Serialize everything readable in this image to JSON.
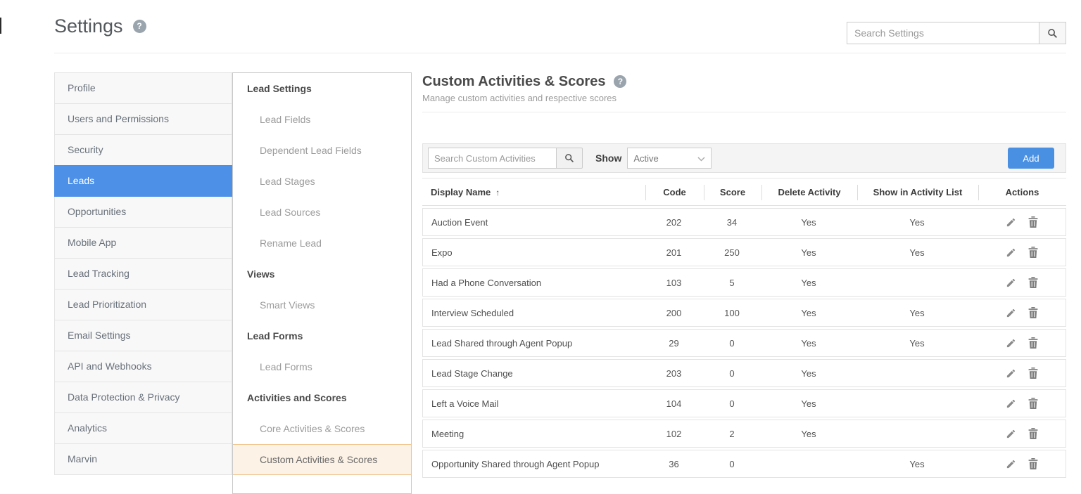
{
  "page": {
    "title": "Settings",
    "search_placeholder": "Search Settings"
  },
  "colors": {
    "accent_blue": "#4d90e8",
    "add_button_blue": "#4a90e2",
    "selected_submenu_bg": "#fcf2e6",
    "selected_submenu_border": "#f0c58f"
  },
  "icons": {
    "help": "question-mark-circle",
    "search": "magnifier",
    "dropdown": "chevron-down",
    "sort": "arrow-up",
    "edit": "pencil",
    "delete": "trash"
  },
  "sidebar": {
    "items": [
      {
        "label": "Profile",
        "selected": false
      },
      {
        "label": "Users and Permissions",
        "selected": false
      },
      {
        "label": "Security",
        "selected": false
      },
      {
        "label": "Leads",
        "selected": true
      },
      {
        "label": "Opportunities",
        "selected": false
      },
      {
        "label": "Mobile App",
        "selected": false
      },
      {
        "label": "Lead Tracking",
        "selected": false
      },
      {
        "label": "Lead Prioritization",
        "selected": false
      },
      {
        "label": "Email Settings",
        "selected": false
      },
      {
        "label": "API and Webhooks",
        "selected": false
      },
      {
        "label": "Data Protection & Privacy",
        "selected": false
      },
      {
        "label": "Analytics",
        "selected": false
      },
      {
        "label": "Marvin",
        "selected": false
      }
    ]
  },
  "submenu": {
    "selected": "Custom Activities & Scores",
    "sections": [
      {
        "header": "Lead Settings",
        "items": [
          "Lead Fields",
          "Dependent Lead Fields",
          "Lead Stages",
          "Lead Sources",
          "Rename Lead"
        ]
      },
      {
        "header": "Views",
        "items": [
          "Smart Views"
        ]
      },
      {
        "header": "Lead Forms",
        "items": [
          "Lead Forms"
        ]
      },
      {
        "header": "Activities and Scores",
        "items": [
          "Core Activities & Scores",
          "Custom Activities & Scores"
        ]
      }
    ]
  },
  "main": {
    "title": "Custom Activities & Scores",
    "subtitle": "Manage custom activities and respective scores",
    "toolbar": {
      "search_placeholder": "Search Custom Activities",
      "show_label": "Show",
      "show_value": "Active",
      "add_label": "Add"
    },
    "table": {
      "columns": [
        "Display Name",
        "Code",
        "Score",
        "Delete Activity",
        "Show in Activity List",
        "Actions"
      ],
      "sort_column": "Display Name",
      "sort_direction": "ascending",
      "sort_arrow": "↑",
      "rows": [
        {
          "name": "Auction Event",
          "code": "202",
          "score": "34",
          "delete_activity": "Yes",
          "show_in_activity_list": "Yes"
        },
        {
          "name": "Expo",
          "code": "201",
          "score": "250",
          "delete_activity": "Yes",
          "show_in_activity_list": "Yes"
        },
        {
          "name": "Had a Phone Conversation",
          "code": "103",
          "score": "5",
          "delete_activity": "Yes",
          "show_in_activity_list": ""
        },
        {
          "name": "Interview Scheduled",
          "code": "200",
          "score": "100",
          "delete_activity": "Yes",
          "show_in_activity_list": "Yes"
        },
        {
          "name": "Lead Shared through Agent Popup",
          "code": "29",
          "score": "0",
          "delete_activity": "Yes",
          "show_in_activity_list": "Yes"
        },
        {
          "name": "Lead Stage Change",
          "code": "203",
          "score": "0",
          "delete_activity": "Yes",
          "show_in_activity_list": ""
        },
        {
          "name": "Left a Voice Mail",
          "code": "104",
          "score": "0",
          "delete_activity": "Yes",
          "show_in_activity_list": ""
        },
        {
          "name": "Meeting",
          "code": "102",
          "score": "2",
          "delete_activity": "Yes",
          "show_in_activity_list": ""
        },
        {
          "name": "Opportunity Shared through Agent Popup",
          "code": "36",
          "score": "0",
          "delete_activity": "",
          "show_in_activity_list": "Yes"
        }
      ]
    }
  }
}
